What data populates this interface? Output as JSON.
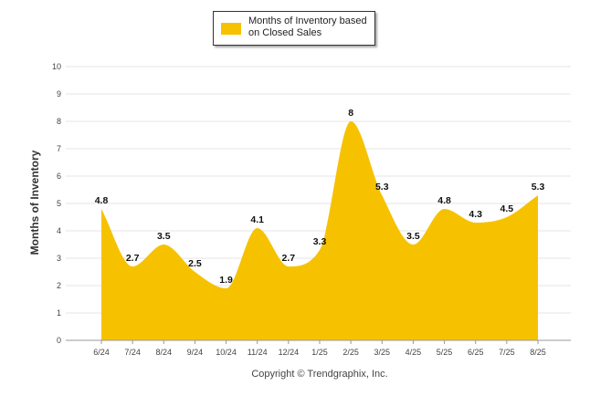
{
  "colors": {
    "area": "#F6C200",
    "grid": "#e4e4e4",
    "axis": "#999999"
  },
  "chart_data": {
    "type": "area",
    "categories": [
      "6/24",
      "7/24",
      "8/24",
      "9/24",
      "10/24",
      "11/24",
      "12/24",
      "1/25",
      "2/25",
      "3/25",
      "4/25",
      "5/25",
      "6/25",
      "7/25",
      "8/25"
    ],
    "series": [
      {
        "name": "Months of Inventory based on Closed Sales",
        "values": [
          4.8,
          2.7,
          3.5,
          2.5,
          1.9,
          4.1,
          2.7,
          3.3,
          8,
          5.3,
          3.5,
          4.8,
          4.3,
          4.5,
          5.3
        ],
        "labels": [
          "4.8",
          "2.7",
          "3.5",
          "2.5",
          "1.9",
          "4.1",
          "2.7",
          "3.3",
          "8",
          "5.3",
          "3.5",
          "4.8",
          "4.3",
          "4.5",
          "5.3"
        ]
      }
    ],
    "yticks": [
      "0",
      "1",
      "2",
      "3",
      "4",
      "5",
      "6",
      "7",
      "8",
      "9",
      "10"
    ],
    "ylabel": "Months of Inventory",
    "xlabel": "",
    "ylim": [
      0,
      10
    ],
    "grid": true,
    "legend": "top-center",
    "credit": "Copyright © Trendgraphix, Inc."
  }
}
